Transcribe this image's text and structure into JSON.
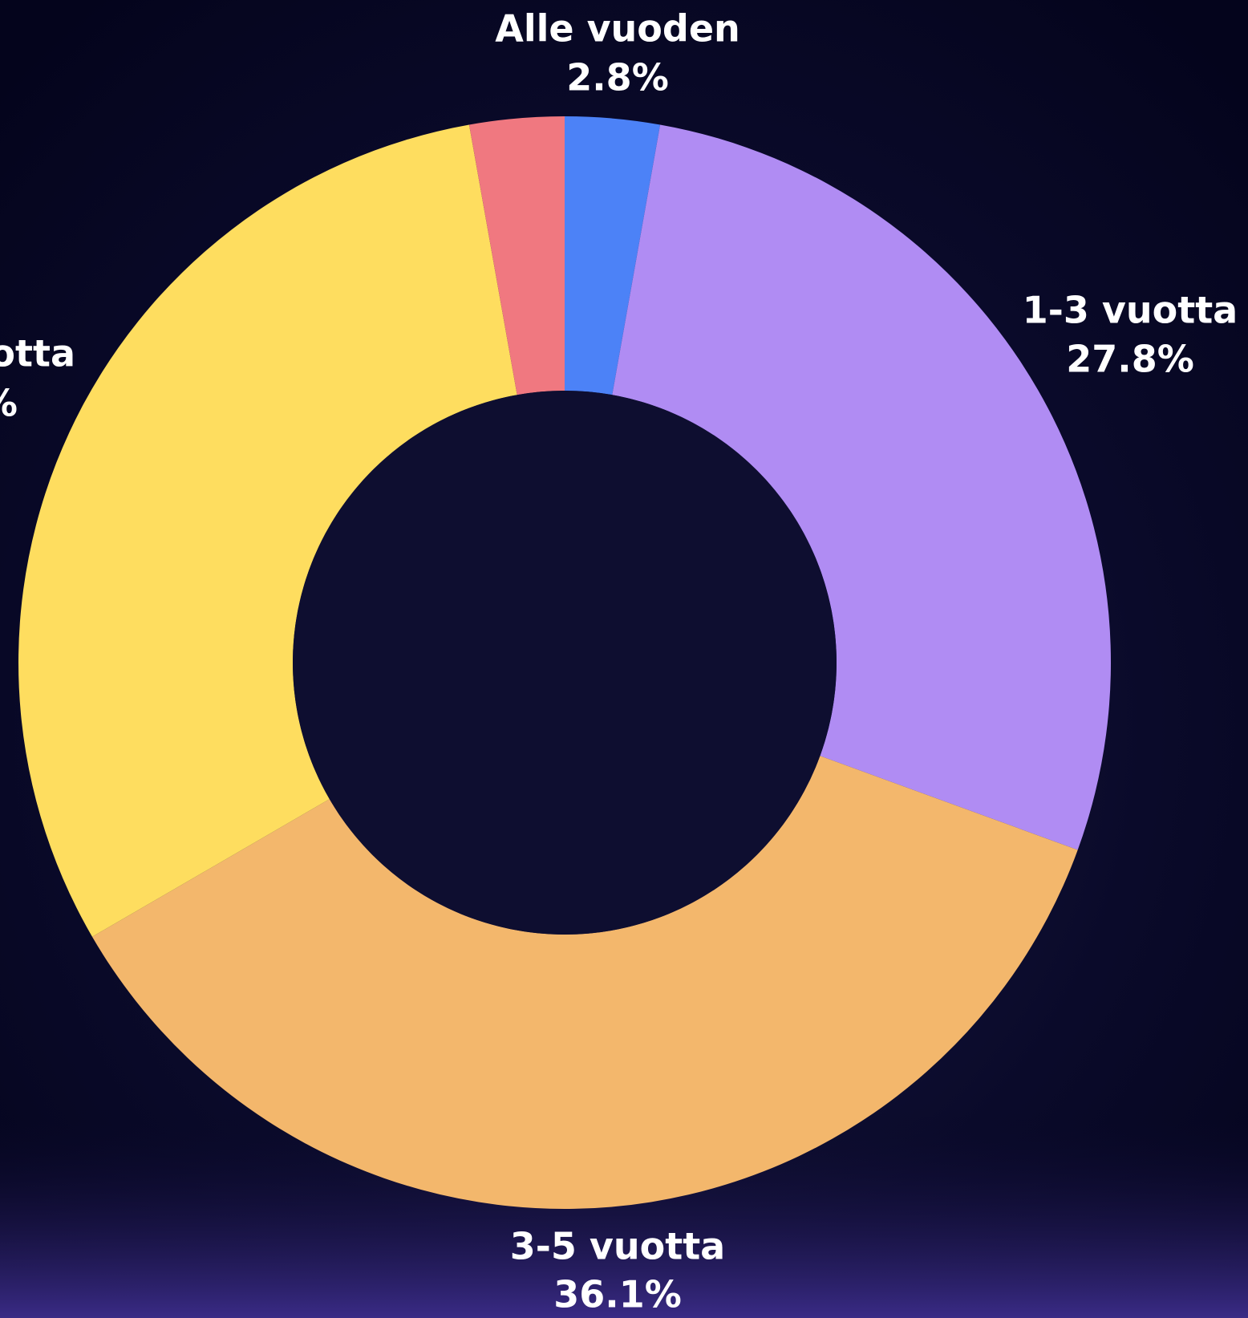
{
  "chart_data": {
    "type": "donut",
    "categories": [
      "Alle vuoden",
      "1-3 vuotta",
      "3-5 vuotta",
      "otta",
      null
    ],
    "values": [
      2.8,
      27.8,
      36.1,
      30.6,
      2.8
    ],
    "value_labels": [
      "2.8%",
      "27.8%",
      "36.1%",
      "%",
      null
    ],
    "colors": [
      "#4c82f7",
      "#b08cf3",
      "#f3b76c",
      "#fedd5f",
      "#f07880"
    ]
  }
}
